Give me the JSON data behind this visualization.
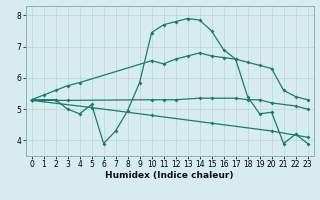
{
  "title": "",
  "xlabel": "Humidex (Indice chaleur)",
  "bg_color": "#d7ecee",
  "grid_color": "#b8d4d8",
  "line_color": "#1a7a6e",
  "xlim": [
    -0.5,
    23.5
  ],
  "ylim": [
    3.5,
    8.3
  ],
  "xticks": [
    0,
    1,
    2,
    3,
    4,
    5,
    6,
    7,
    8,
    9,
    10,
    11,
    12,
    13,
    14,
    15,
    16,
    17,
    18,
    19,
    20,
    21,
    22,
    23
  ],
  "yticks": [
    4,
    5,
    6,
    7,
    8
  ],
  "line1_x": [
    0,
    1,
    2,
    3,
    4,
    10,
    11,
    12,
    13,
    14,
    15,
    16,
    17,
    18,
    19,
    20,
    21,
    22,
    23
  ],
  "line1_y": [
    5.3,
    5.45,
    5.6,
    5.75,
    5.85,
    6.55,
    6.45,
    6.6,
    6.7,
    6.8,
    6.7,
    6.65,
    6.6,
    6.5,
    6.4,
    6.3,
    5.6,
    5.4,
    5.3
  ],
  "line2_x": [
    0,
    2,
    3,
    10,
    11,
    12,
    14,
    15,
    17,
    18,
    19,
    20,
    22,
    23
  ],
  "line2_y": [
    5.28,
    5.28,
    5.28,
    5.3,
    5.3,
    5.3,
    5.35,
    5.35,
    5.35,
    5.3,
    5.3,
    5.2,
    5.1,
    5.0
  ],
  "line3_x": [
    0,
    1,
    2,
    3,
    4,
    5,
    6,
    7,
    8,
    9,
    10,
    11,
    12,
    13,
    14,
    15,
    16,
    17,
    18,
    19,
    20,
    21,
    22,
    23
  ],
  "line3_y": [
    5.3,
    5.3,
    5.3,
    5.0,
    4.85,
    5.15,
    3.9,
    4.3,
    4.95,
    5.85,
    7.45,
    7.7,
    7.8,
    7.9,
    7.85,
    7.5,
    6.9,
    6.6,
    5.4,
    4.85,
    4.9,
    3.9,
    4.2,
    3.9
  ],
  "line4_x": [
    0,
    5,
    10,
    15,
    20,
    23
  ],
  "line4_y": [
    5.28,
    5.05,
    4.8,
    4.55,
    4.3,
    4.1
  ],
  "marker": "D",
  "markersize": 2.0,
  "linewidth": 0.9,
  "tick_fontsize": 5.5,
  "xlabel_fontsize": 6.5
}
